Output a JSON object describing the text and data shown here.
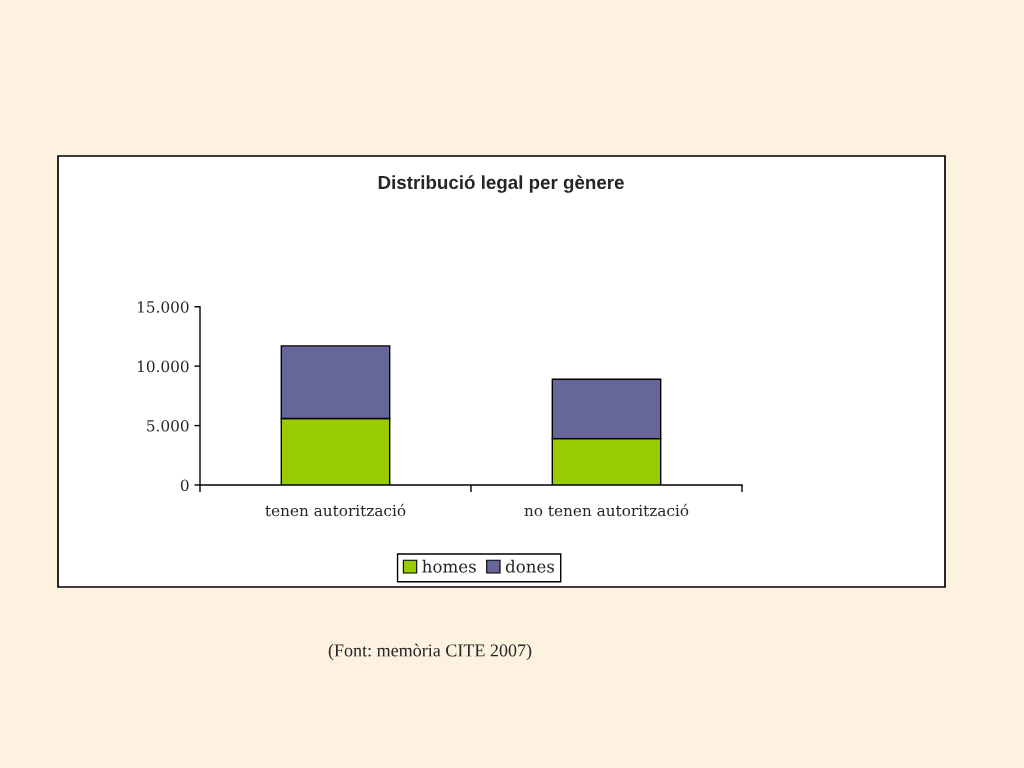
{
  "chart_data": {
    "type": "bar",
    "title": "Distribució legal per gènere",
    "categories": [
      "tenen autorització",
      "no tenen autorització"
    ],
    "series": [
      {
        "name": "homes",
        "color": "#99cc00",
        "values": [
          5600,
          3900
        ]
      },
      {
        "name": "dones",
        "color": "#666699",
        "values": [
          6100,
          5000
        ]
      }
    ],
    "stacked": true,
    "ylim": [
      0,
      15000
    ],
    "yticks": [
      0,
      {
        "value": 5000,
        "label": "5.000"
      },
      {
        "value": 10000,
        "label": "10.000"
      },
      {
        "value": 15000,
        "label": "15.000"
      }
    ],
    "legend": "bottom",
    "grid": false,
    "annotations": [
      "(Font: memòria CITE 2007)"
    ]
  }
}
